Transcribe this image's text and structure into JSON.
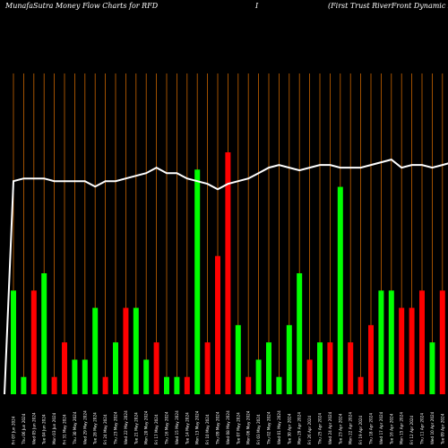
{
  "header": {
    "title_left": "MunafaSutra  Money Flow  Charts for RFD",
    "title_mid": "I",
    "title_right": "(First Trust RiverFront Dynamic Develo"
  },
  "colors": {
    "background": "#000000",
    "up": "#00ff00",
    "down": "#ff0000",
    "grid": "#c86400",
    "line": "#ffffff"
  },
  "chart_data": {
    "type": "bar",
    "title": "MunafaSutra  Money Flow  Charts for RFD",
    "grid": "vertical",
    "categories": [
      "Fri 07 Jun 2024",
      "Thu 06 Jun 2024",
      "Wed 05 Jun 2024",
      "Tue 04 Jun 2024",
      "Mon 03 Jun 2024",
      "Fri 31 May 2024",
      "Thu 30 May 2024",
      "Wed 29 May 2024",
      "Tue 28 May 2024",
      "Fri 24 May 2024",
      "Thu 23 May 2024",
      "Wed 22 May 2024",
      "Tue 21 May 2024",
      "Mon 20 May 2024",
      "Fri 17 May 2024",
      "Thu 16 May 2024",
      "Wed 15 May 2024",
      "Tue 14 May 2024",
      "Mon 13 May 2024",
      "Fri 10 May 2024",
      "Thu 09 May 2024",
      "Wed 08 May 2024",
      "Tue 07 May 2024",
      "Mon 06 May 2024",
      "Fri 03 May 2024",
      "Thu 02 May 2024",
      "Wed 01 May 2024",
      "Tue 30 Apr 2024",
      "Mon 29 Apr 2024",
      "Fri 26 Apr 2024",
      "Thu 25 Apr 2024",
      "Wed 24 Apr 2024",
      "Tue 23 Apr 2024",
      "Mon 22 Apr 2024",
      "Fri 19 Apr 2024",
      "Thu 18 Apr 2024",
      "Wed 17 Apr 2024",
      "Tue 16 Apr 2024",
      "Mon 15 Apr 2024",
      "Fri 12 Apr 2024",
      "Thu 11 Apr 2024",
      "Wed 10 Apr 2024",
      "Tue 09 Apr 2024",
      "Mon 08 Apr 2024"
    ],
    "series": [
      {
        "values": [
          6,
          1,
          6,
          7,
          1,
          3,
          2,
          2,
          5,
          1,
          3,
          5,
          5,
          2,
          3,
          1,
          1,
          1,
          13,
          3,
          8,
          14,
          4,
          1,
          2,
          3,
          1,
          4,
          7,
          2,
          3,
          3,
          12,
          3,
          1,
          4,
          6,
          6,
          5,
          5,
          6,
          3,
          6,
          1
        ],
        "directions": [
          "up",
          "up",
          "down",
          "up",
          "down",
          "down",
          "up",
          "up",
          "up",
          "down",
          "up",
          "down",
          "up",
          "up",
          "down",
          "up",
          "up",
          "down",
          "up",
          "down",
          "down",
          "down",
          "up",
          "down",
          "up",
          "up",
          "up",
          "up",
          "up",
          "down",
          "up",
          "down",
          "up",
          "down",
          "down",
          "down",
          "up",
          "up",
          "down",
          "down",
          "down",
          "up",
          "down",
          "down"
        ]
      }
    ],
    "money_flow_line": [
      0.79,
      0.8,
      0.8,
      0.8,
      0.79,
      0.79,
      0.79,
      0.79,
      0.77,
      0.79,
      0.79,
      0.8,
      0.81,
      0.82,
      0.84,
      0.82,
      0.82,
      0.8,
      0.79,
      0.78,
      0.76,
      0.78,
      0.79,
      0.8,
      0.82,
      0.84,
      0.85,
      0.84,
      0.83,
      0.84,
      0.85,
      0.85,
      0.84,
      0.84,
      0.84,
      0.85,
      0.86,
      0.87,
      0.84,
      0.85,
      0.85,
      0.84,
      0.85,
      0.86
    ]
  }
}
